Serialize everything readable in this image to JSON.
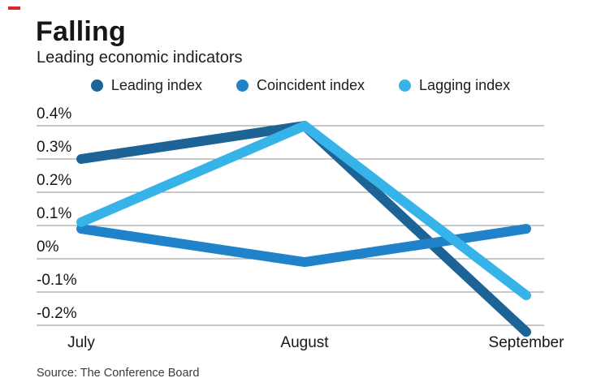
{
  "page": {
    "background_color": "#ffffff",
    "accent_dash_color": "#d8282c"
  },
  "header": {
    "title": "Falling",
    "subtitle": "Leading economic indicators"
  },
  "source_note": "Source: The Conference Board",
  "chart_data": {
    "type": "line",
    "title": "Falling",
    "subtitle": "Leading economic indicators",
    "categories": [
      "July",
      "August",
      "September"
    ],
    "series": [
      {
        "name": "Leading index",
        "color": "#1d6396",
        "values": [
          0.3,
          0.4,
          -0.22
        ]
      },
      {
        "name": "Coincident index",
        "color": "#2083c9",
        "values": [
          0.09,
          -0.01,
          0.09
        ]
      },
      {
        "name": "Lagging index",
        "color": "#36b3e8",
        "values": [
          0.11,
          0.4,
          -0.11
        ]
      }
    ],
    "unit": "%",
    "yticks": {
      "values": [
        0.4,
        0.3,
        0.2,
        0.1,
        0,
        -0.1,
        -0.2
      ],
      "labels": [
        "0.4%",
        "0.3%",
        "0.2%",
        "0.1%",
        "0%",
        "-0.1%",
        "-0.2%"
      ]
    },
    "ylim": [
      -0.2,
      0.4
    ],
    "grid": "horizontal",
    "gridline_color": "#919191",
    "legend_position": "top-center",
    "line_width": 12,
    "source": "Source: The Conference Board"
  }
}
